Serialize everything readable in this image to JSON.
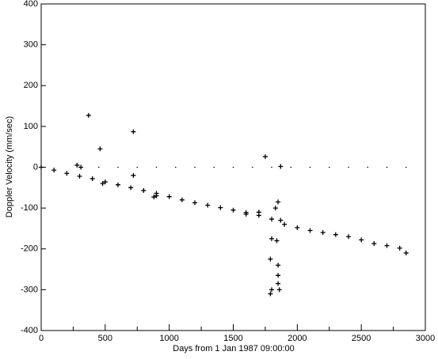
{
  "chart_data": {
    "type": "scatter",
    "xlabel": "Days from 1 Jan 1987  09:00:00",
    "ylabel": "Doppler Velocity (mm/sec)",
    "xlim": [
      0,
      3000
    ],
    "xticks": [
      0,
      500,
      1000,
      1500,
      2000,
      2500,
      3000
    ],
    "xminorticks": [
      250,
      750,
      1250,
      1750,
      2250,
      2750
    ],
    "ylim": [
      -400,
      400
    ],
    "yticks": [
      -400,
      -300,
      -200,
      -100,
      0,
      100,
      200,
      300,
      400
    ],
    "series": [
      {
        "color": "#000000",
        "marker": "plus",
        "x": [
          0,
          100,
          200,
          300,
          400,
          500,
          600,
          700,
          800,
          900,
          1000,
          1100,
          1200,
          1300,
          1400,
          1500,
          1600,
          1700,
          1800,
          1900,
          2000,
          2100,
          2200,
          2300,
          2400,
          2500,
          2600,
          2700,
          2800,
          2850
        ],
        "values": [
          0,
          -7,
          -15,
          -22,
          -28,
          -36,
          -43,
          -50,
          -57,
          -64,
          -72,
          -80,
          -87,
          -93,
          -99,
          -105,
          -111,
          -118,
          -127,
          -140,
          -148,
          -155,
          -160,
          -165,
          -170,
          -178,
          -187,
          -192,
          -198,
          -210
        ]
      },
      {
        "color": "#000000",
        "marker": "plus",
        "x": [
          370,
          460,
          720,
          720,
          280,
          310,
          1750,
          1870,
          1790,
          1800,
          1790,
          1850,
          1850,
          1860,
          1850,
          1850,
          1830,
          1800,
          1840,
          1600,
          1700,
          880,
          900,
          480,
          1870
        ],
        "values": [
          127,
          45,
          87,
          -20,
          5,
          0,
          26,
          2,
          -310,
          -300,
          -225,
          -240,
          -265,
          -300,
          -285,
          -85,
          -100,
          -175,
          -180,
          -115,
          -110,
          -73,
          -70,
          -40,
          -130
        ]
      },
      {
        "color": "#000000",
        "marker": "dot",
        "x": [
          300,
          450,
          600,
          750,
          900,
          1050,
          1200,
          1350,
          1500,
          1650,
          1800,
          1950,
          2100,
          2250,
          2400,
          2550,
          2700,
          2850
        ],
        "values": [
          0,
          0,
          0,
          0,
          0,
          0,
          0,
          0,
          0,
          0,
          0,
          0,
          0,
          0,
          0,
          0,
          0,
          0
        ]
      }
    ]
  }
}
